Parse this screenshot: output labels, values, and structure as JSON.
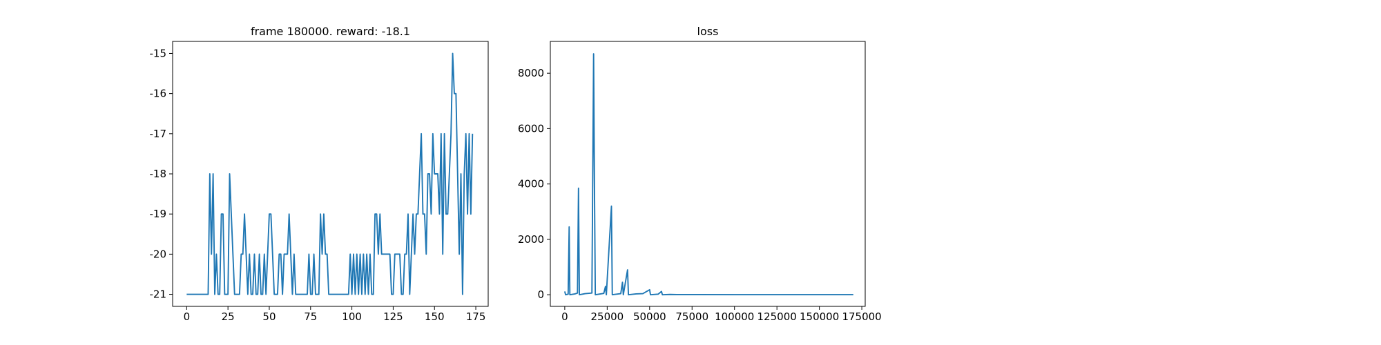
{
  "chart_data": [
    {
      "type": "line",
      "title": "frame 180000. reward: -18.1",
      "x": [
        0,
        1,
        2,
        3,
        4,
        5,
        6,
        7,
        8,
        9,
        10,
        11,
        12,
        13,
        14,
        15,
        16,
        17,
        18,
        19,
        20,
        21,
        22,
        23,
        24,
        25,
        26,
        27,
        28,
        29,
        30,
        31,
        32,
        33,
        34,
        35,
        36,
        37,
        38,
        39,
        40,
        41,
        42,
        43,
        44,
        45,
        46,
        47,
        48,
        49,
        50,
        51,
        52,
        53,
        54,
        55,
        56,
        57,
        58,
        59,
        60,
        61,
        62,
        63,
        64,
        65,
        66,
        67,
        68,
        69,
        70,
        71,
        72,
        73,
        74,
        75,
        76,
        77,
        78,
        79,
        80,
        81,
        82,
        83,
        84,
        85,
        86,
        87,
        88,
        89,
        90,
        91,
        92,
        93,
        94,
        95,
        96,
        97,
        98,
        99,
        100,
        101,
        102,
        103,
        104,
        105,
        106,
        107,
        108,
        109,
        110,
        111,
        112,
        113,
        114,
        115,
        116,
        117,
        118,
        119,
        120,
        121,
        122,
        123,
        124,
        125,
        126,
        127,
        128,
        129,
        130,
        131,
        132,
        133,
        134,
        135,
        136,
        137,
        138,
        139,
        140,
        141,
        142,
        143,
        144,
        145,
        146,
        147,
        148,
        149,
        150,
        151,
        152,
        153,
        154,
        155,
        156,
        157,
        158,
        159,
        160,
        161,
        162,
        163,
        164,
        165,
        166,
        167,
        168,
        169,
        170,
        171,
        172,
        173
      ],
      "series": [
        {
          "color": "#1f77b4",
          "values": [
            -21,
            -21,
            -21,
            -21,
            -21,
            -21,
            -21,
            -21,
            -21,
            -21,
            -21,
            -21,
            -21,
            -21,
            -18,
            -20,
            -18,
            -21,
            -20,
            -21,
            -21,
            -19,
            -19,
            -21,
            -21,
            -21,
            -18,
            -19,
            -20,
            -21,
            -21,
            -21,
            -21,
            -20,
            -20,
            -19,
            -20,
            -21,
            -20,
            -21,
            -21,
            -20,
            -21,
            -21,
            -20,
            -21,
            -21,
            -20,
            -21,
            -20,
            -19,
            -19,
            -20,
            -21,
            -21,
            -21,
            -20,
            -20,
            -21,
            -20,
            -20,
            -20,
            -19,
            -20,
            -21,
            -20,
            -21,
            -21,
            -21,
            -21,
            -21,
            -21,
            -21,
            -21,
            -20,
            -21,
            -21,
            -20,
            -21,
            -21,
            -21,
            -19,
            -20,
            -19,
            -20,
            -20,
            -21,
            -21,
            -21,
            -21,
            -21,
            -21,
            -21,
            -21,
            -21,
            -21,
            -21,
            -21,
            -21,
            -20,
            -21,
            -20,
            -21,
            -20,
            -21,
            -20,
            -21,
            -20,
            -21,
            -20,
            -21,
            -20,
            -21,
            -21,
            -19,
            -19,
            -20,
            -19,
            -20,
            -20,
            -20,
            -20,
            -20,
            -20,
            -21,
            -21,
            -20,
            -20,
            -20,
            -20,
            -21,
            -21,
            -20,
            -20,
            -19,
            -21,
            -20,
            -19,
            -20,
            -19,
            -19,
            -18,
            -17,
            -19,
            -19,
            -20,
            -18,
            -18,
            -19,
            -17,
            -18,
            -18,
            -18,
            -19,
            -17,
            -20,
            -17,
            -19,
            -19,
            -18,
            -17,
            -15,
            -16,
            -16,
            -18,
            -20,
            -18,
            -21,
            -18,
            -17,
            -19,
            -17,
            -19,
            -17
          ]
        }
      ],
      "xlim": [
        -8.5,
        182.5
      ],
      "xticks": [
        0,
        25,
        50,
        75,
        100,
        125,
        150,
        175
      ],
      "ylim": [
        -21.3,
        -14.7
      ],
      "yticks": [
        -21,
        -20,
        -19,
        -18,
        -17,
        -16,
        -15
      ]
    },
    {
      "type": "line",
      "title": "loss",
      "x": [
        0,
        500,
        2000,
        2600,
        3000,
        6000,
        7500,
        8100,
        8600,
        12000,
        16000,
        17000,
        17500,
        18000,
        23000,
        24000,
        24500,
        27500,
        28000,
        33000,
        34000,
        34500,
        37000,
        37500,
        42000,
        46000,
        50000,
        50500,
        55000,
        57000,
        57500,
        62000,
        66000,
        80000,
        100000,
        130000,
        170000
      ],
      "series": [
        {
          "color": "#1f77b4",
          "values": [
            120,
            0,
            20,
            2450,
            0,
            30,
            60,
            3850,
            0,
            40,
            60,
            8700,
            3900,
            0,
            50,
            300,
            0,
            3200,
            0,
            40,
            450,
            0,
            900,
            0,
            30,
            40,
            180,
            0,
            20,
            120,
            0,
            10,
            5,
            5,
            3,
            2,
            2
          ]
        }
      ],
      "xlim": [
        -8500,
        177000
      ],
      "xticks": [
        0,
        25000,
        50000,
        75000,
        100000,
        125000,
        150000,
        175000
      ],
      "ylim": [
        -420,
        9150
      ],
      "yticks": [
        0,
        2000,
        4000,
        6000,
        8000
      ]
    }
  ]
}
